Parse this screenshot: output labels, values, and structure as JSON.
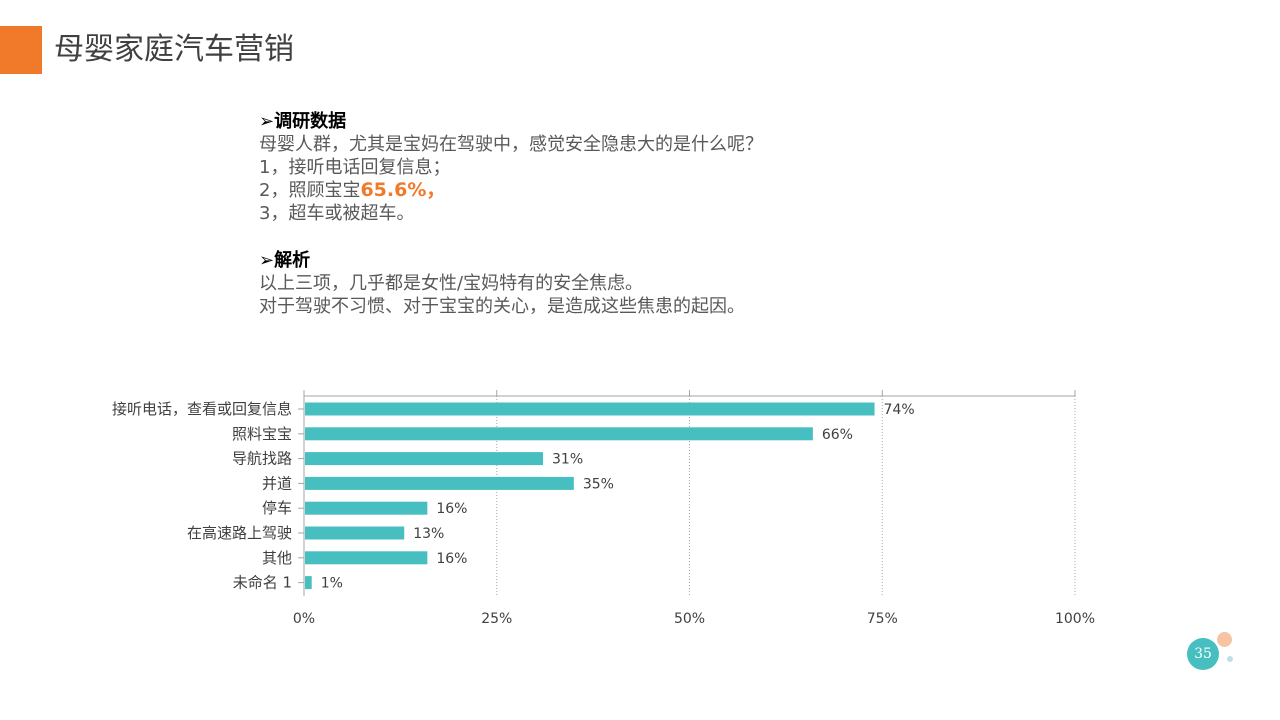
{
  "page_title": "母婴家庭汽车营销",
  "survey": {
    "heading": "➢调研数据",
    "question": "母婴人群，尤其是宝妈在驾驶中，感觉安全隐患大的是什么呢？",
    "item1": "1，接听电话回复信息；",
    "item2_prefix": "2，照顾宝宝",
    "item2_highlight": "65.6%，",
    "item3": "3，超车或被超车。"
  },
  "analysis": {
    "heading": "➢解析",
    "line1": "以上三项，几乎都是女性/宝妈特有的安全焦虑。",
    "line2": "对于驾驶不习惯、对于宝宝的关心，是造成这些焦患的起因。"
  },
  "page_number": "35",
  "colors": {
    "accent_orange": "#f07a2a",
    "bar_teal": "#47bfc1"
  },
  "chart_data": {
    "type": "bar",
    "orientation": "horizontal",
    "categories": [
      "接听电话，查看或回复信息",
      "照料宝宝",
      "导航找路",
      "并道",
      "停车",
      "在高速路上驾驶",
      "其他",
      "未命名 1"
    ],
    "values": [
      74,
      66,
      31,
      35,
      16,
      13,
      16,
      1
    ],
    "data_labels": [
      "74%",
      "66%",
      "31%",
      "35%",
      "16%",
      "13%",
      "16%",
      "1%"
    ],
    "xlim": [
      0,
      100
    ],
    "xticks": [
      0,
      25,
      50,
      75,
      100
    ],
    "xtick_labels": [
      "0%",
      "25%",
      "50%",
      "75%",
      "100%"
    ],
    "grid": "vertical-dotted",
    "bar_color": "#47bfc1"
  }
}
